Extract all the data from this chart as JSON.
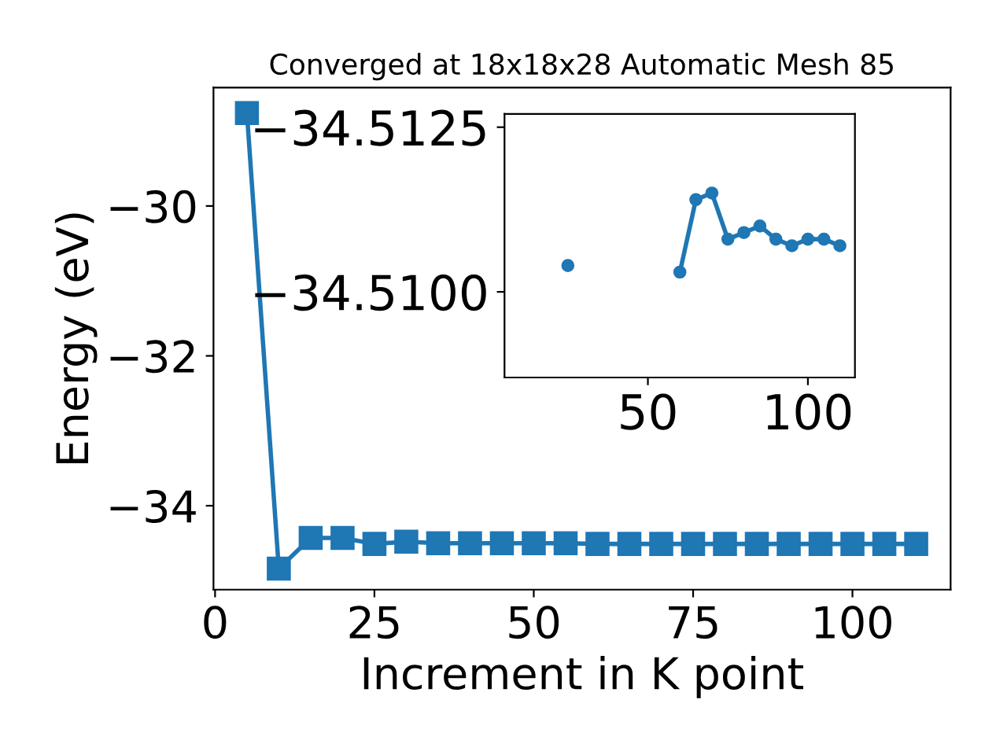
{
  "chart_data": [
    {
      "type": "line",
      "title": "Converged at 18x18x28 Automatic Mesh 85",
      "xlabel": "Increment in K point",
      "ylabel": "Energy (eV)",
      "x": [
        5,
        10,
        15,
        20,
        25,
        30,
        35,
        40,
        45,
        50,
        55,
        60,
        65,
        70,
        75,
        80,
        85,
        90,
        95,
        100,
        105,
        110
      ],
      "series": [
        {
          "color": "#1f77b4",
          "values": [
            -28.76,
            -34.84,
            -34.43,
            -34.43,
            -34.51,
            -34.48,
            -34.5,
            -34.5,
            -34.5,
            -34.5,
            -34.5,
            -34.51,
            -34.51,
            -34.51,
            -34.51,
            -34.51,
            -34.51,
            -34.51,
            -34.51,
            -34.51,
            -34.51,
            -34.51
          ]
        }
      ],
      "marker": "square",
      "xlim": [
        -0.25,
        115.4
      ],
      "ylim": [
        -35.12,
        -28.42
      ],
      "xticks": [
        0,
        25,
        50,
        75,
        100
      ],
      "yticks": [
        {
          "value": -34,
          "label": "−34"
        },
        {
          "value": -32,
          "label": "−32"
        },
        {
          "value": -30,
          "label": "−30"
        }
      ],
      "grid": false,
      "legend": false
    },
    {
      "type": "line",
      "x": [
        25,
        30,
        35,
        40,
        45,
        50,
        55,
        60,
        65,
        70,
        75,
        80,
        85,
        90,
        95,
        100,
        105,
        110
      ],
      "series": [
        {
          "color": "#1f77b4",
          "values": [
            -34.5104,
            null,
            null,
            null,
            null,
            null,
            null,
            -34.5103,
            -34.5114,
            -34.5115,
            -34.5108,
            -34.5109,
            -34.511,
            -34.5108,
            -34.5107,
            -34.5108,
            -34.5108,
            -34.5107
          ]
        }
      ],
      "marker": "circle",
      "xlim": [
        5.2,
        114.7
      ],
      "ylim": [
        -34.5087,
        -34.5127
      ],
      "xticks": [
        50,
        100
      ],
      "yticks": [
        {
          "value": -34.5125,
          "label": "−34.5125"
        },
        {
          "value": -34.51,
          "label": "−34.5100"
        }
      ],
      "grid": false,
      "legend": false
    }
  ]
}
